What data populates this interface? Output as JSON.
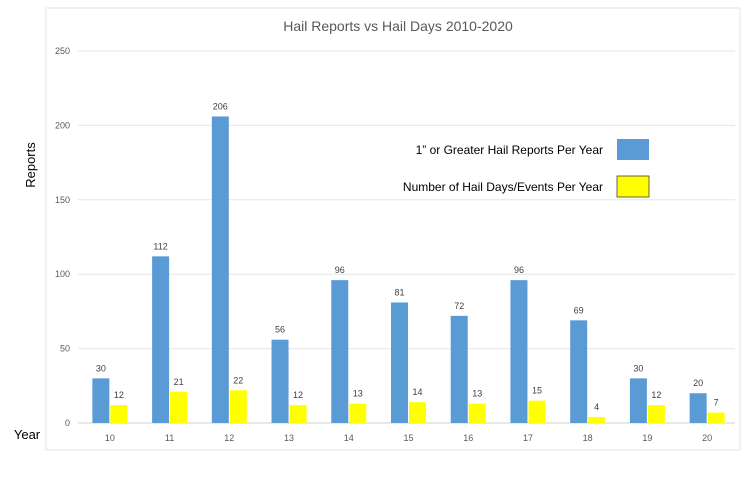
{
  "chart_data": {
    "type": "bar",
    "title": "Hail Reports vs Hail Days 2010-2020",
    "xlabel": "Year",
    "ylabel": "Reports",
    "ylim": [
      0,
      250
    ],
    "yticks": [
      0,
      50,
      100,
      150,
      200,
      250
    ],
    "categories": [
      "10",
      "11",
      "12",
      "13",
      "14",
      "15",
      "16",
      "17",
      "18",
      "19",
      "20"
    ],
    "series": [
      {
        "name": "1” or Greater Hail Reports Per Year",
        "color": "#5b9bd5",
        "values": [
          30,
          112,
          206,
          56,
          96,
          81,
          72,
          96,
          69,
          30,
          20
        ]
      },
      {
        "name": "Number of Hail Days/Events Per Year",
        "color": "#ffff00",
        "values": [
          12,
          21,
          22,
          12,
          13,
          14,
          13,
          15,
          4,
          12,
          7
        ]
      }
    ],
    "grid": true,
    "legend_position": "right"
  }
}
